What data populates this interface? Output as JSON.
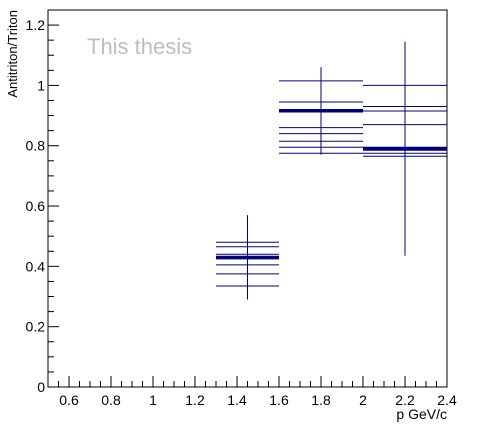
{
  "chart_data": {
    "type": "scatter",
    "title": "",
    "watermark": "This thesis",
    "xlabel": "p GeV/c",
    "ylabel": "Antitriton/Triton",
    "xlim": [
      0.5,
      2.4
    ],
    "ylim": [
      0,
      1.25
    ],
    "x_major_ticks": [
      0.6,
      0.8,
      1,
      1.2,
      1.4,
      1.6,
      1.8,
      2,
      2.2,
      2.4
    ],
    "x_tick_labels": [
      "0.6",
      "0.8",
      "1",
      "1.2",
      "1.4",
      "1.6",
      "1.8",
      "2",
      "2.2",
      "2.4"
    ],
    "y_major_ticks": [
      0,
      0.2,
      0.4,
      0.6,
      0.8,
      1,
      1.2
    ],
    "y_tick_labels": [
      "0",
      "0.2",
      "0.4",
      "0.6",
      "0.8",
      "1",
      "1.2"
    ],
    "grid": false,
    "legend": "none",
    "color": "#00007f",
    "points": [
      {
        "x": 1.45,
        "y": 0.43,
        "x_low": 1.3,
        "x_high": 1.6,
        "y_err": 0.14
      },
      {
        "x": 1.8,
        "y": 0.915,
        "x_low": 1.6,
        "x_high": 2.0,
        "y_err": 0.145
      },
      {
        "x": 2.2,
        "y": 0.79,
        "x_low": 2.0,
        "x_high": 2.4,
        "y_err": 0.355
      }
    ],
    "systematic_variations": [
      {
        "x_low": 1.3,
        "x_high": 1.6,
        "values": [
          0.48,
          0.465,
          0.44,
          0.43,
          0.425,
          0.405,
          0.375,
          0.335
        ]
      },
      {
        "x_low": 1.6,
        "x_high": 2.0,
        "values": [
          1.015,
          0.945,
          0.92,
          0.915,
          0.86,
          0.84,
          0.815,
          0.795,
          0.775
        ]
      },
      {
        "x_low": 2.0,
        "x_high": 2.4,
        "values": [
          1.0,
          0.93,
          0.915,
          0.87,
          0.795,
          0.785,
          0.775,
          0.765
        ]
      }
    ]
  }
}
